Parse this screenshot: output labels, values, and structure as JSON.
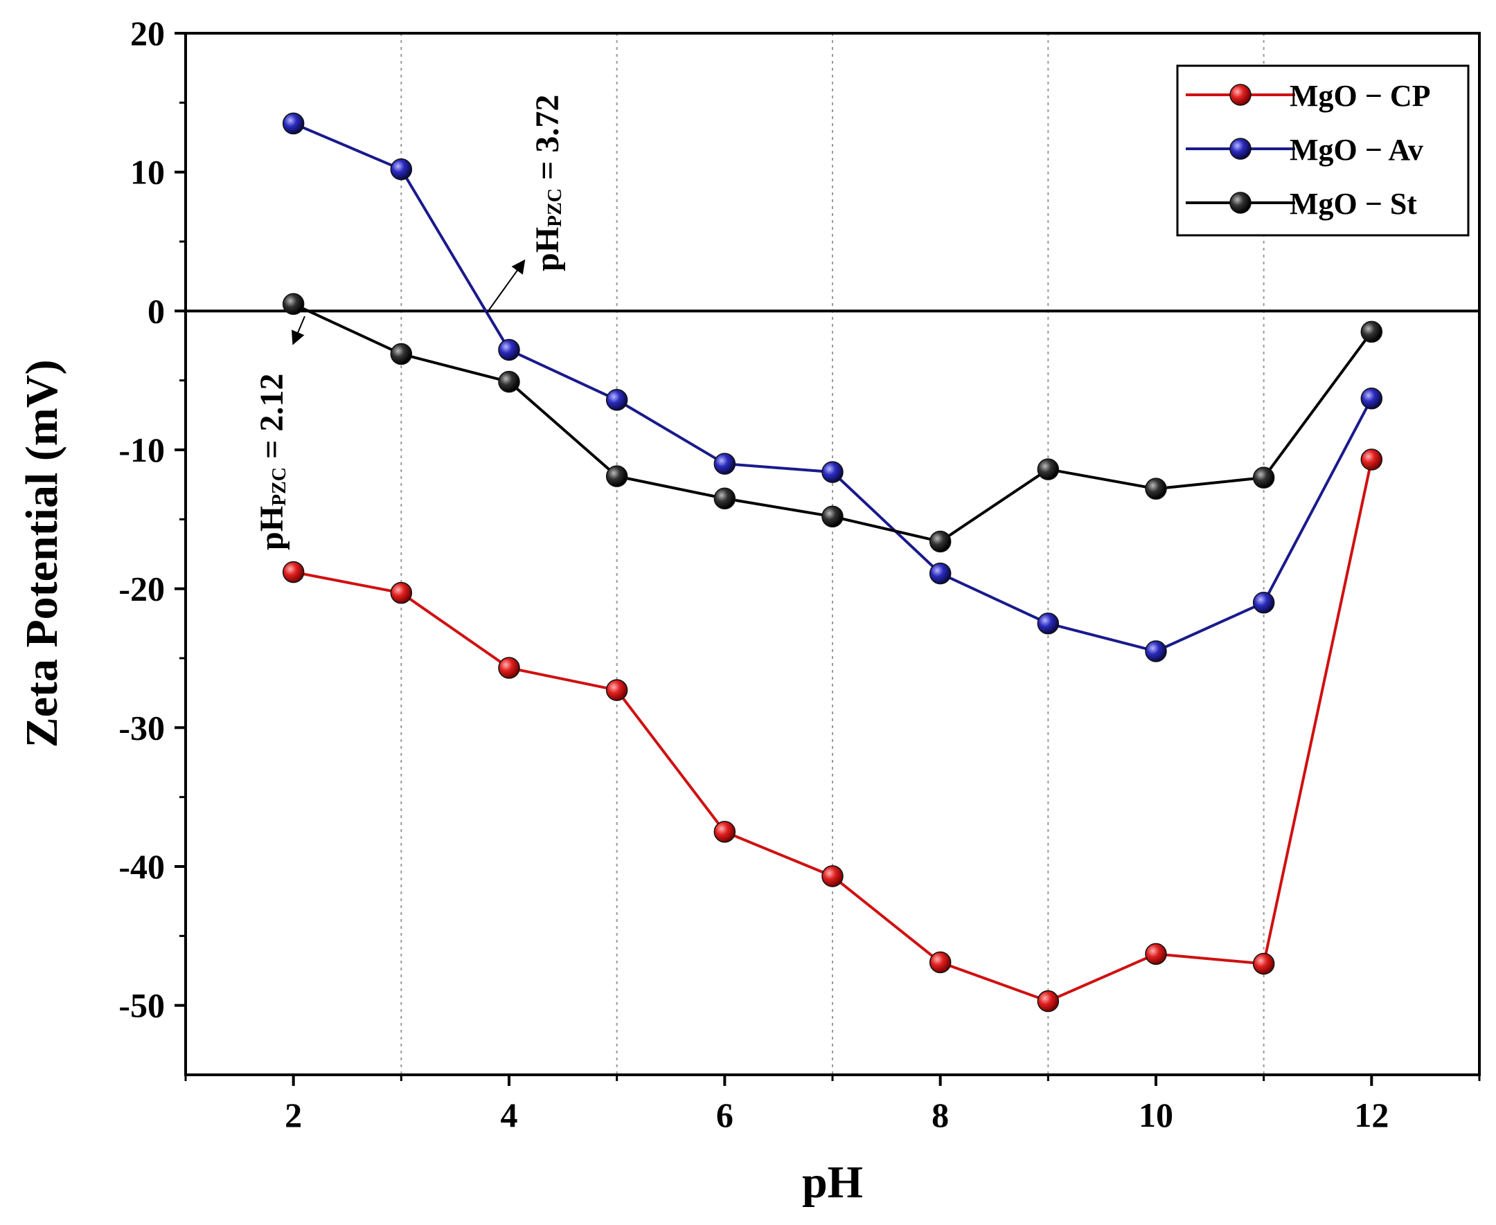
{
  "chart_data": {
    "type": "line",
    "title": "",
    "xlabel": "pH",
    "ylabel": "Zeta Potential (mV)",
    "xlim": [
      1,
      13
    ],
    "ylim": [
      -55,
      20
    ],
    "xticks": [
      2,
      4,
      6,
      8,
      10,
      12
    ],
    "yticks": [
      20,
      10,
      0,
      -10,
      -20,
      -30,
      -40,
      -50
    ],
    "vertical_gridlines_at": [
      3,
      5,
      7,
      9,
      11
    ],
    "zero_line": true,
    "legend_position": "top-right",
    "x": [
      2,
      3,
      4,
      5,
      6,
      7,
      8,
      9,
      10,
      11,
      12
    ],
    "series": [
      {
        "name": "MgO − CP",
        "color": "#d01010",
        "values": [
          -18.8,
          -20.3,
          -25.7,
          -27.3,
          -37.5,
          -40.7,
          -46.9,
          -49.7,
          -46.3,
          -47.0,
          -10.7
        ]
      },
      {
        "name": "MgO − Av",
        "color": "#1a1a8c",
        "values": [
          13.5,
          10.2,
          -2.8,
          -6.4,
          -11.0,
          -11.6,
          -18.9,
          -22.5,
          -24.5,
          -21.0,
          -6.3
        ]
      },
      {
        "name": "MgO − St",
        "color": "#000000",
        "values": [
          0.5,
          -3.1,
          -5.1,
          -11.9,
          -13.5,
          -14.8,
          -16.6,
          -11.4,
          -12.8,
          -12.0,
          -1.5
        ]
      }
    ],
    "annotations": [
      {
        "main": "pH",
        "sub": "PZC",
        "value": " = 3.72",
        "at": [
          3.72,
          0
        ]
      },
      {
        "main": "pH",
        "sub": "PZC",
        "value": " = 2.12",
        "at": [
          2.12,
          0
        ]
      }
    ]
  }
}
